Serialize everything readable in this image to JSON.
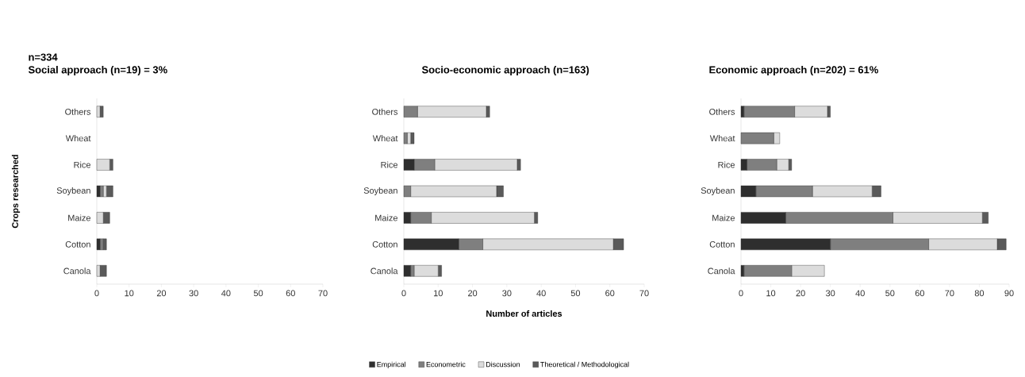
{
  "chart_data": [
    {
      "type": "bar",
      "orientation": "horizontal",
      "stacked": true,
      "title": "Social approach (n=19) = 3%",
      "ylabel": "Crops researched",
      "annotations": [
        "n=334"
      ],
      "categories": [
        "Others",
        "Wheat",
        "Rice",
        "Soybean",
        "Maize",
        "Cotton",
        "Canola"
      ],
      "xlim": [
        0,
        70
      ],
      "xticks": [
        0,
        10,
        20,
        30,
        40,
        50,
        60,
        70
      ],
      "series": [
        {
          "color": "#2e2e2e",
          "values": [
            0,
            0,
            0,
            1,
            0,
            1,
            0
          ]
        },
        {
          "color": "#7f7f7f",
          "values": [
            0,
            0,
            0,
            1,
            0,
            1,
            0
          ]
        },
        {
          "color": "#dcdcdc",
          "values": [
            1,
            0,
            4,
            1,
            2,
            0,
            1
          ]
        },
        {
          "color": "#5a5a5a",
          "values": [
            1,
            0,
            1,
            2,
            2,
            1,
            2
          ]
        }
      ]
    },
    {
      "type": "bar",
      "orientation": "horizontal",
      "stacked": true,
      "title": "Socio-economic approach (n=163)",
      "xlabel": "Number of articles",
      "legend": "bottom",
      "categories": [
        "Others",
        "Wheat",
        "Rice",
        "Soybean",
        "Maize",
        "Cotton",
        "Canola"
      ],
      "xlim": [
        0,
        70
      ],
      "xticks": [
        0,
        10,
        20,
        30,
        40,
        50,
        60,
        70
      ],
      "series": [
        {
          "name": "Empirical",
          "color": "#2e2e2e",
          "values": [
            0,
            0,
            3,
            0,
            2,
            16,
            2
          ]
        },
        {
          "name": "Econometric",
          "color": "#7f7f7f",
          "values": [
            4,
            1,
            6,
            2,
            6,
            7,
            1
          ]
        },
        {
          "name": "Discussion",
          "color": "#dcdcdc",
          "values": [
            20,
            1,
            24,
            25,
            30,
            38,
            7
          ]
        },
        {
          "name": "Theoretical / Methodological",
          "color": "#5a5a5a",
          "values": [
            1,
            1,
            1,
            2,
            1,
            3,
            1
          ]
        }
      ]
    },
    {
      "type": "bar",
      "orientation": "horizontal",
      "stacked": true,
      "title": "Economic approach (n=202) = 61%",
      "categories": [
        "Others",
        "Wheat",
        "Rice",
        "Soybean",
        "Maize",
        "Cotton",
        "Canola"
      ],
      "xlim": [
        0,
        90
      ],
      "xticks": [
        0,
        10,
        20,
        30,
        40,
        50,
        60,
        70,
        80,
        90
      ],
      "series": [
        {
          "color": "#2e2e2e",
          "values": [
            1,
            0,
            2,
            5,
            15,
            30,
            1
          ]
        },
        {
          "color": "#7f7f7f",
          "values": [
            17,
            11,
            10,
            19,
            36,
            33,
            16
          ]
        },
        {
          "color": "#dcdcdc",
          "values": [
            11,
            2,
            4,
            20,
            30,
            23,
            11
          ]
        },
        {
          "color": "#5a5a5a",
          "values": [
            1,
            0,
            1,
            3,
            2,
            3,
            0
          ]
        }
      ]
    }
  ]
}
